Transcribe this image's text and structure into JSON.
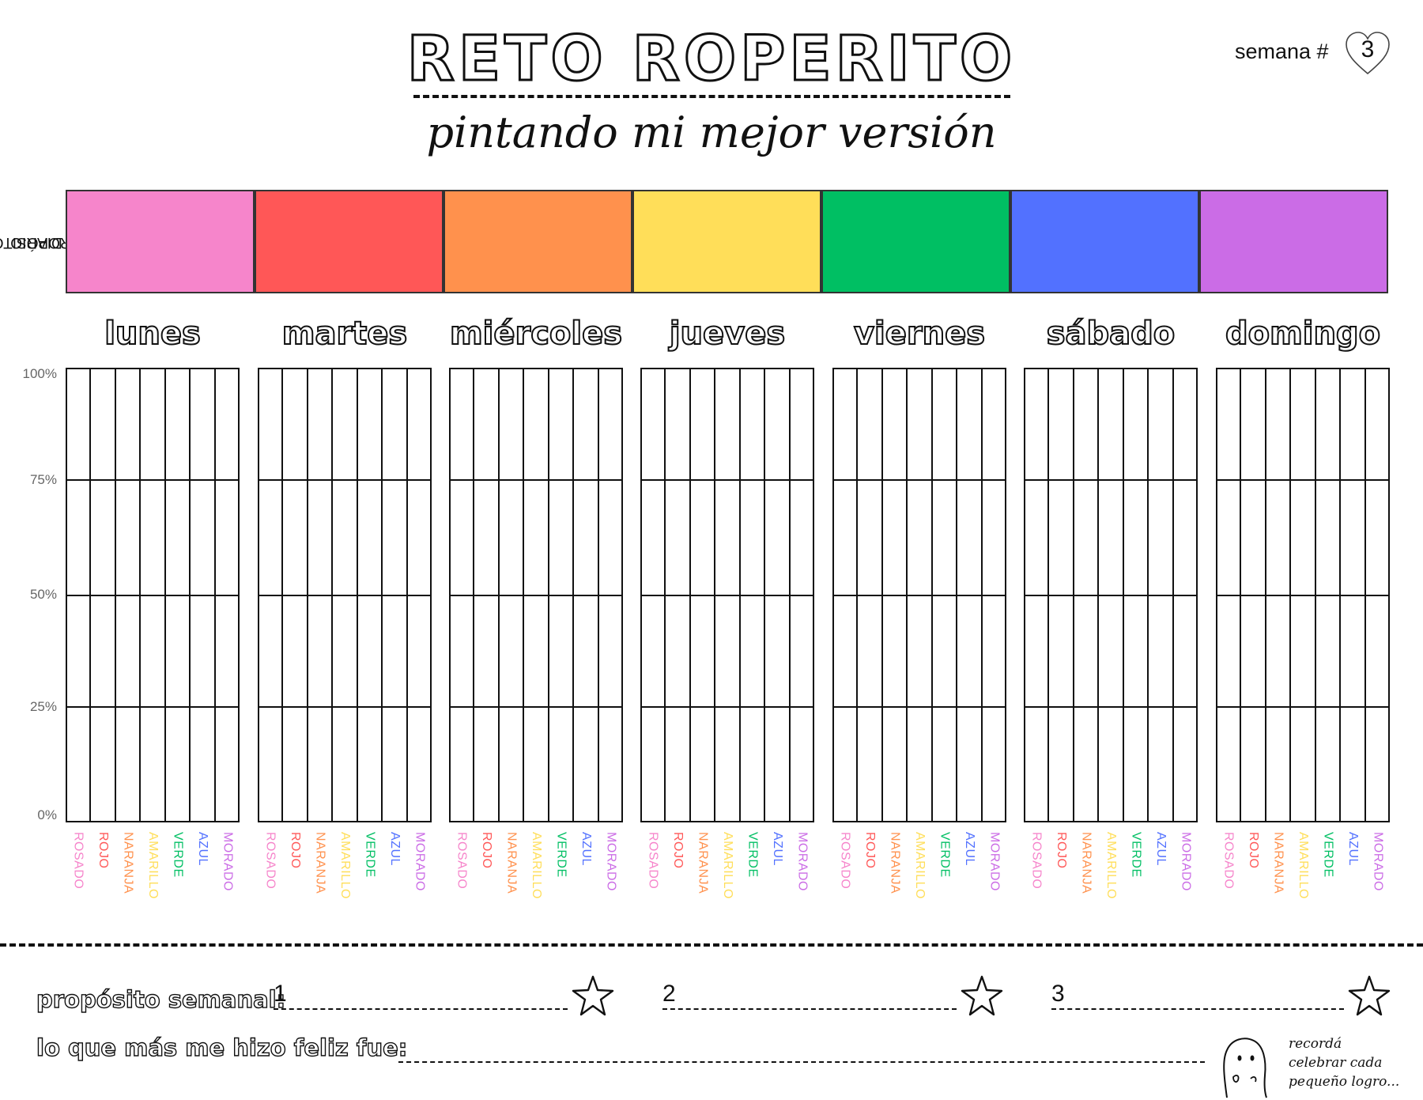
{
  "header": {
    "title": "RETO ROPERITO",
    "subtitle": "pintando mi mejor versión",
    "week_label": "semana #",
    "week_number": "3"
  },
  "purpose": {
    "label_line1": "PROPÓSITO",
    "label_line2": "DIARIO",
    "boxes": [
      {
        "name": "rosado",
        "color": "#F685CB"
      },
      {
        "name": "rojo",
        "color": "#FF5757"
      },
      {
        "name": "naranja",
        "color": "#FF914D"
      },
      {
        "name": "amarillo",
        "color": "#FFDE59"
      },
      {
        "name": "verde",
        "color": "#00BF63"
      },
      {
        "name": "azul",
        "color": "#5271FF"
      },
      {
        "name": "morado",
        "color": "#CB6CE6"
      }
    ]
  },
  "days": [
    "lunes",
    "martes",
    "miércoles",
    "jueves",
    "viernes",
    "sábado",
    "domingo"
  ],
  "y_axis": [
    "100%",
    "75%",
    "50%",
    "25%",
    "0%"
  ],
  "colors": [
    {
      "label": "ROSADO",
      "hex": "#F685CB"
    },
    {
      "label": "ROJO",
      "hex": "#FF5757"
    },
    {
      "label": "NARANJA",
      "hex": "#FF914D"
    },
    {
      "label": "AMARILLO",
      "hex": "#FFDE59"
    },
    {
      "label": "VERDE",
      "hex": "#00BF63"
    },
    {
      "label": "AZUL",
      "hex": "#5271FF"
    },
    {
      "label": "MORADO",
      "hex": "#CB6CE6"
    }
  ],
  "bottom": {
    "weekly_label": "propósito semanal:",
    "goals": [
      "1",
      "2",
      "3"
    ],
    "happy_label": "lo que más me hizo feliz fue:",
    "note_line1": "recordá",
    "note_line2": "celebrar cada",
    "note_line3": "pequeño logro..."
  }
}
